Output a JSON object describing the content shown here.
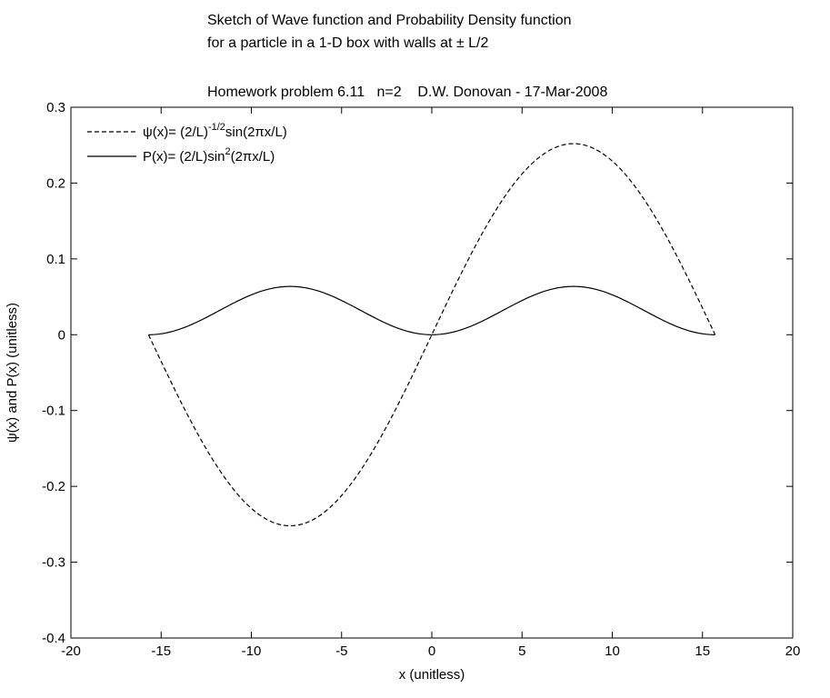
{
  "chart_data": {
    "type": "line",
    "title_lines": [
      "Sketch of Wave function and Probability Density function",
      "for a particle in a 1-D box with walls at ± L/2",
      "Homework problem 6.11   n=2    D.W. Donovan - 17-Mar-2008"
    ],
    "xlabel": "x (unitless)",
    "ylabel": "ψ(x) and P(x) (unitless)",
    "xlim": [
      -20,
      20
    ],
    "ylim": [
      -0.4,
      0.3
    ],
    "x_ticks": [
      -20,
      -15,
      -10,
      -5,
      0,
      5,
      10,
      15,
      20
    ],
    "x_tick_labels": [
      "-20",
      "-15",
      "-10",
      "-5",
      "0",
      "5",
      "10",
      "15",
      "20"
    ],
    "y_ticks": [
      -0.4,
      -0.3,
      -0.2,
      -0.1,
      0,
      0.1,
      0.2,
      0.3
    ],
    "y_tick_labels": [
      "-0.4",
      "-0.3",
      "-0.2",
      "-0.1",
      "0",
      "0.1",
      "0.2",
      "0.3"
    ],
    "grid": false,
    "legend_position": "top-left",
    "box_length_L": 31.4,
    "series": [
      {
        "name": "ψ(x)= (2/L)-1/2sin(2πx/L)",
        "legend_base": "ψ(x)= (2/L)",
        "legend_sup": "-1/2",
        "legend_tail": "sin(2πx/L)",
        "style": "dashed",
        "color": "#000000",
        "points": [
          [
            -15.7,
            0.0
          ],
          [
            -14.0,
            -0.081
          ],
          [
            -12.0,
            -0.17
          ],
          [
            -10.0,
            -0.229
          ],
          [
            -7.85,
            -0.252
          ],
          [
            -6.0,
            -0.234
          ],
          [
            -4.0,
            -0.18
          ],
          [
            -2.0,
            -0.098
          ],
          [
            0.0,
            0.0
          ],
          [
            2.0,
            0.098
          ],
          [
            4.0,
            0.18
          ],
          [
            6.0,
            0.234
          ],
          [
            7.85,
            0.252
          ],
          [
            10.0,
            0.229
          ],
          [
            12.0,
            0.17
          ],
          [
            14.0,
            0.081
          ],
          [
            15.7,
            0.0
          ]
        ]
      },
      {
        "name": "P(x)= (2/L)sin2(2πx/L)",
        "legend_base": "P(x)= (2/L)sin",
        "legend_sup": "2",
        "legend_tail": "(2πx/L)",
        "style": "solid",
        "color": "#000000",
        "points": [
          [
            -15.7,
            0.0
          ],
          [
            -14.0,
            0.0066
          ],
          [
            -12.0,
            0.0289
          ],
          [
            -10.0,
            0.0524
          ],
          [
            -7.85,
            0.0637
          ],
          [
            -6.0,
            0.0548
          ],
          [
            -4.0,
            0.0324
          ],
          [
            -2.0,
            0.0096
          ],
          [
            0.0,
            0.0
          ],
          [
            2.0,
            0.0096
          ],
          [
            4.0,
            0.0324
          ],
          [
            6.0,
            0.0548
          ],
          [
            7.85,
            0.0637
          ],
          [
            10.0,
            0.0524
          ],
          [
            12.0,
            0.0289
          ],
          [
            14.0,
            0.0066
          ],
          [
            15.7,
            0.0
          ]
        ]
      }
    ]
  }
}
